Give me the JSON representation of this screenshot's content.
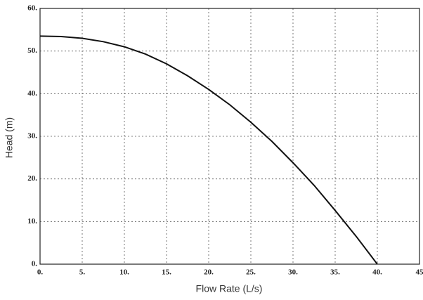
{
  "chart_data": {
    "type": "line",
    "x_label": "Flow Rate (L/s)",
    "y_label": "Head (m)",
    "x": [
      0,
      2.5,
      5,
      7.5,
      10,
      12.5,
      15,
      17.5,
      20,
      22.5,
      25,
      27.5,
      30,
      32.5,
      35,
      37.5,
      40
    ],
    "series": [
      {
        "color": "#111111",
        "values": [
          53.5,
          53.4,
          53,
          52.2,
          51,
          49.3,
          47,
          44.2,
          41,
          37.4,
          33.3,
          28.8,
          23.8,
          18.5,
          12.6,
          6.5,
          0
        ]
      }
    ],
    "xlim": [
      0,
      45
    ],
    "ylim": [
      0,
      60
    ],
    "xticks": [
      {
        "value": 0,
        "label": "0."
      },
      {
        "value": 5,
        "label": "5."
      },
      {
        "value": 10,
        "label": "10."
      },
      {
        "value": 15,
        "label": "15."
      },
      {
        "value": 20,
        "label": "20."
      },
      {
        "value": 25,
        "label": "25."
      },
      {
        "value": 30,
        "label": "30."
      },
      {
        "value": 35,
        "label": "35."
      },
      {
        "value": 40,
        "label": "40."
      },
      45
    ],
    "yticks": [
      {
        "value": 0,
        "label": "0."
      },
      {
        "value": 10,
        "label": "10."
      },
      {
        "value": 20,
        "label": "20."
      },
      {
        "value": 30,
        "label": "30."
      },
      {
        "value": 40,
        "label": "40."
      },
      {
        "value": 50,
        "label": "50."
      },
      {
        "value": 60,
        "label": "60."
      }
    ],
    "grid": true
  }
}
